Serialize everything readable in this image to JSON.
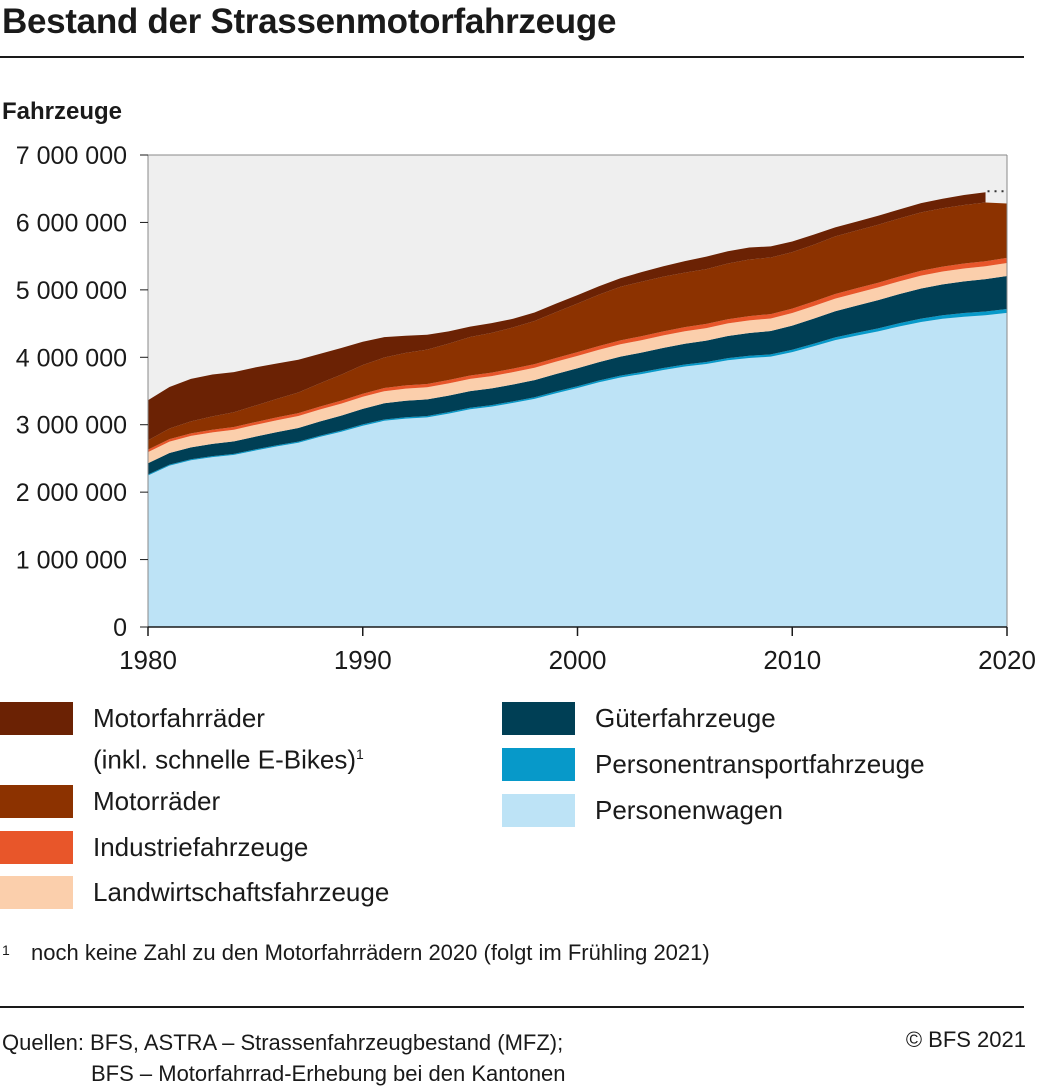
{
  "title": "Bestand der Strassenmotorfahrzeuge",
  "colors": {
    "motorfahrraeder": "#6b2204",
    "motorraeder": "#8c3200",
    "industrie": "#e8562a",
    "landwirtschaft": "#fbcfac",
    "gueter": "#003f55",
    "personentransport": "#0799c9",
    "personenwagen": "#bde3f6",
    "plot_background": "#efefef",
    "axis_text": "#1a1a1a"
  },
  "chart_data": {
    "type": "area",
    "stacked": true,
    "ylabel": "Fahrzeuge",
    "xlabel": "",
    "ylim": [
      0,
      7000000
    ],
    "xlim": [
      1980,
      2020
    ],
    "y_ticks": [
      {
        "value": 0,
        "label": "0"
      },
      {
        "value": 1000000,
        "label": "1 000 000"
      },
      {
        "value": 2000000,
        "label": "2 000 000"
      },
      {
        "value": 3000000,
        "label": "3 000 000"
      },
      {
        "value": 4000000,
        "label": "4 000 000"
      },
      {
        "value": 5000000,
        "label": "5 000 000"
      },
      {
        "value": 6000000,
        "label": "6 000 000"
      },
      {
        "value": 7000000,
        "label": "7 000 000"
      }
    ],
    "x_ticks": [
      {
        "value": 1980,
        "label": "1980"
      },
      {
        "value": 1990,
        "label": "1990"
      },
      {
        "value": 2000,
        "label": "2000"
      },
      {
        "value": 2010,
        "label": "2010"
      },
      {
        "value": 2020,
        "label": "2020"
      }
    ],
    "grid": false,
    "years": [
      1980,
      1981,
      1982,
      1983,
      1984,
      1985,
      1986,
      1987,
      1988,
      1989,
      1990,
      1991,
      1992,
      1993,
      1994,
      1995,
      1996,
      1997,
      1998,
      1999,
      2000,
      2001,
      2002,
      2003,
      2004,
      2005,
      2006,
      2007,
      2008,
      2009,
      2010,
      2011,
      2012,
      2013,
      2014,
      2015,
      2016,
      2017,
      2018,
      2019,
      2020
    ],
    "series": [
      {
        "key": "personenwagen",
        "name": "Personenwagen",
        "values": [
          2247000,
          2394000,
          2473000,
          2520000,
          2552000,
          2617000,
          2678000,
          2733000,
          2819000,
          2895000,
          2985000,
          3058000,
          3091000,
          3109000,
          3165000,
          3229000,
          3268000,
          3323000,
          3383000,
          3467000,
          3545000,
          3629000,
          3701000,
          3753000,
          3812000,
          3863000,
          3900000,
          3956000,
          3989000,
          4009000,
          4076000,
          4163000,
          4255000,
          4321000,
          4385000,
          4459000,
          4524000,
          4571000,
          4602000,
          4623000,
          4658000
        ]
      },
      {
        "key": "personentransport",
        "name": "Personentransportfahrzeuge",
        "values": [
          14000,
          15000,
          15000,
          15000,
          16000,
          17000,
          17000,
          17000,
          18000,
          19000,
          20000,
          20000,
          20000,
          21000,
          22000,
          22000,
          23000,
          24000,
          24000,
          25000,
          26000,
          26000,
          27000,
          28000,
          29000,
          30000,
          31000,
          32000,
          33000,
          34000,
          36000,
          38000,
          40000,
          42000,
          44000,
          47000,
          50000,
          52000,
          54000,
          56000,
          58000
        ]
      },
      {
        "key": "gueter",
        "name": "Güterfahrzeuge",
        "values": [
          168000,
          172000,
          176000,
          180000,
          184000,
          189000,
          195000,
          202000,
          210000,
          220000,
          230000,
          240000,
          245000,
          245000,
          245000,
          247000,
          248000,
          250000,
          255000,
          260000,
          266000,
          273000,
          281000,
          290000,
          299000,
          308000,
          317000,
          328000,
          339000,
          346000,
          357000,
          372000,
          387000,
          403000,
          418000,
          433000,
          447000,
          459000,
          470000,
          480000,
          490000
        ]
      },
      {
        "key": "landwirtschaft",
        "name": "Landwirtschaftsfahrzeuge",
        "values": [
          165000,
          168000,
          170000,
          172000,
          174000,
          175000,
          176000,
          177000,
          178000,
          178000,
          179000,
          179000,
          180000,
          180000,
          181000,
          181000,
          182000,
          182000,
          182000,
          183000,
          183000,
          183000,
          184000,
          184000,
          185000,
          185000,
          185000,
          186000,
          186000,
          187000,
          187000,
          187000,
          188000,
          188000,
          189000,
          189000,
          190000,
          190000,
          191000,
          191000,
          192000
        ]
      },
      {
        "key": "industrie",
        "name": "Industriefahrzeuge",
        "values": [
          36000,
          37000,
          38000,
          39000,
          40000,
          41000,
          42000,
          43000,
          44000,
          45000,
          46000,
          47000,
          48000,
          49000,
          50000,
          51000,
          52000,
          53000,
          54000,
          55000,
          56000,
          57000,
          58000,
          59000,
          60000,
          61000,
          62000,
          63000,
          64000,
          65000,
          66000,
          67000,
          68000,
          69000,
          70000,
          71000,
          72000,
          73000,
          74000,
          75000,
          76000
        ]
      },
      {
        "key": "motorraeder",
        "name": "Motorräder",
        "values": [
          138000,
          158000,
          178000,
          198000,
          218000,
          245000,
          275000,
          305000,
          345000,
          385000,
          425000,
          452000,
          482000,
          510000,
          540000,
          570000,
          589000,
          611000,
          640000,
          680000,
          722000,
          762000,
          795000,
          809000,
          812000,
          809000,
          812000,
          826000,
          840000,
          839000,
          837000,
          842000,
          855000,
          857000,
          860000,
          862000,
          866000,
          865000,
          868000,
          870000,
          806000
        ]
      },
      {
        "key": "motorfahrraeder",
        "name": "Motorfahrräder (inkl. schnelle E-Bikes)",
        "values": [
          595000,
          615000,
          630000,
          620000,
          596000,
          566000,
          525000,
          487000,
          436000,
          396000,
          346000,
          303000,
          254000,
          221000,
          181000,
          154000,
          144000,
          128000,
          126000,
          125000,
          123000,
          124000,
          126000,
          141000,
          153000,
          170000,
          186000,
          182000,
          177000,
          165000,
          158000,
          150000,
          133000,
          131000,
          133000,
          133000,
          137000,
          141000,
          147000,
          152000,
          null
        ]
      }
    ],
    "legend_position": "bottom"
  },
  "legend_col1": [
    {
      "key": "motorfahrraeder",
      "line1": "Motorfahrräder",
      "line2": "(inkl. schnelle E-Bikes)",
      "sup": "1"
    },
    {
      "key": "motorraeder",
      "line1": "Motorräder"
    },
    {
      "key": "industrie",
      "line1": "Industriefahrzeuge"
    },
    {
      "key": "landwirtschaft",
      "line1": "Landwirtschaftsfahrzeuge"
    }
  ],
  "legend_col2": [
    {
      "key": "gueter",
      "line1": "Güterfahrzeuge"
    },
    {
      "key": "personentransport",
      "line1": "Personentransportfahrzeuge"
    },
    {
      "key": "personenwagen",
      "line1": "Personenwagen"
    }
  ],
  "footnote": {
    "mark": "1",
    "text": "noch keine Zahl zu den Motorfahrrädern 2020 (folgt im Frühling 2021)"
  },
  "source": {
    "line1": "Quellen: BFS, ASTRA – Strassenfahrzeugbestand (MFZ);",
    "line2": "BFS – Motorfahrrad-Erhebung bei den Kantonen"
  },
  "copyright": "© BFS 2021"
}
